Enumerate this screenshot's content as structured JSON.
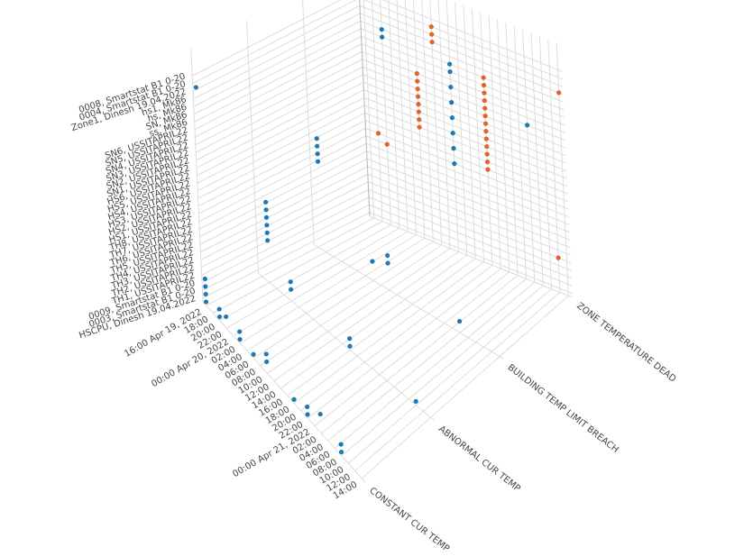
{
  "chart_data": {
    "type": "scatter3d",
    "xlim": [
      "2022-04-19T15:00",
      "2022-04-21T15:00"
    ],
    "xticks": [
      {
        "value": "2022-04-19T16:00",
        "label": "16:00 Apr 19, 2022"
      },
      {
        "value": "2022-04-19T18:00",
        "label": "18:00"
      },
      {
        "value": "2022-04-19T20:00",
        "label": "20:00"
      },
      {
        "value": "2022-04-19T22:00",
        "label": "22:00"
      },
      {
        "value": "2022-04-20T00:00",
        "label": "00:00 Apr 20, 2022"
      },
      {
        "value": "2022-04-20T02:00",
        "label": "02:00"
      },
      {
        "value": "2022-04-20T04:00",
        "label": "04:00"
      },
      {
        "value": "2022-04-20T06:00",
        "label": "06:00"
      },
      {
        "value": "2022-04-20T08:00",
        "label": "08:00"
      },
      {
        "value": "2022-04-20T10:00",
        "label": "10:00"
      },
      {
        "value": "2022-04-20T12:00",
        "label": "12:00"
      },
      {
        "value": "2022-04-20T14:00",
        "label": "14:00"
      },
      {
        "value": "2022-04-20T16:00",
        "label": "16:00"
      },
      {
        "value": "2022-04-20T18:00",
        "label": "18:00"
      },
      {
        "value": "2022-04-20T20:00",
        "label": "20:00"
      },
      {
        "value": "2022-04-20T22:00",
        "label": "22:00"
      },
      {
        "value": "2022-04-21T00:00",
        "label": "00:00 Apr 21, 2022"
      },
      {
        "value": "2022-04-21T02:00",
        "label": "02:00"
      },
      {
        "value": "2022-04-21T04:00",
        "label": "04:00"
      },
      {
        "value": "2022-04-21T06:00",
        "label": "06:00"
      },
      {
        "value": "2022-04-21T08:00",
        "label": "08:00"
      },
      {
        "value": "2022-04-21T10:00",
        "label": "10:00"
      },
      {
        "value": "2022-04-21T12:00",
        "label": "12:00"
      },
      {
        "value": "2022-04-21T14:00",
        "label": "14:00"
      }
    ],
    "y_categories": [
      "HSCPU, Dinesh 19.04.2022",
      "0003, Smartstat B1 0-20",
      "0009, Smartstat B1 0-20",
      "TH1, USSITAPRIL22",
      "TH2, USSITAPRIL22",
      "TH3, USSITAPRIL22",
      "TH4, USSITAPRIL22",
      "TH5, USSITAPRIL22",
      "TH6, USSITAPRIL22",
      "TH7, USSITAPRIL22",
      "TH8, USSITAPRIL22",
      "HS1, USSITAPRIL22",
      "HS2, USSITAPRIL22",
      "HS3, USSITAPRIL22",
      "HS4, USSITAPRIL22",
      "HS5, USSITAPRIL22",
      "HS6, USSITAPRIL22",
      "SN1, USSITAPRIL22",
      "SN2, USSITAPRIL22",
      "SN3, USSITAPRIL22",
      "SN4, USSITAPRIL22",
      "SN5, USSITAPRIL22",
      "SN6, USSITAPRIL22",
      "ss, Mk86",
      "SN, Mk86",
      "hs, Mk86",
      "hs1, Mk86",
      "Zone1, Dinesh 19.04.2022",
      "0004, Smartstat B1 0-20",
      "0008, Smartstat B1 0-20"
    ],
    "z_categories": [
      "CONSTANT CUR TEMP",
      "ABNORMAL CUR TEMP",
      "BUILDING TEMP LIMIT BREACH",
      "ZONE TEMPERATURE DEAD"
    ],
    "series": [
      {
        "color": "#1f77b4",
        "x": [
          "2022-04-20T12:00",
          "2022-04-20T12:00",
          "2022-04-20T12:00",
          "2022-04-20T12:00",
          "2022-04-20T12:00",
          "2022-04-20T12:00",
          "2022-04-20T12:00",
          "2022-04-20T12:00",
          "2022-04-19T20:00",
          "2022-04-19T20:00",
          "2022-04-21T06:00",
          "2022-04-19T17:00",
          "2022-04-19T17:00",
          "2022-04-19T17:00",
          "2022-04-19T17:00",
          "2022-04-20T10:00",
          "2022-04-20T10:00",
          "2022-04-20T06:00",
          "2022-04-21T04:00",
          "2022-04-19T18:00",
          "2022-04-19T18:00",
          "2022-04-19T18:00",
          "2022-04-19T18:00",
          "2022-04-19T18:00",
          "2022-04-19T18:00",
          "2022-04-20T00:00",
          "2022-04-20T00:00",
          "2022-04-20T16:00",
          "2022-04-20T16:00",
          "2022-04-21T10:00",
          "2022-04-19T16:00",
          "2022-04-19T16:00",
          "2022-04-19T16:00",
          "2022-04-19T16:00",
          "2022-04-19T20:00",
          "2022-04-19T20:00",
          "2022-04-19T22:00",
          "2022-04-20T02:00",
          "2022-04-20T02:00",
          "2022-04-20T06:00",
          "2022-04-20T10:00",
          "2022-04-20T10:00",
          "2022-04-20T18:00",
          "2022-04-20T22:00",
          "2022-04-20T22:00",
          "2022-04-21T02:00",
          "2022-04-21T08:00",
          "2022-04-21T08:00",
          "2022-04-19T16:00"
        ],
        "y": [
          "HS1, USSITAPRIL22",
          "HS3, USSITAPRIL22",
          "HS5, USSITAPRIL22",
          "SN1, USSITAPRIL22",
          "SN3, USSITAPRIL22",
          "SN5, USSITAPRIL22",
          "ss, Mk86",
          "SN, Mk86",
          "SN, Mk86",
          "hs, Mk86",
          "SN4, USSITAPRIL22",
          "HS1, USSITAPRIL22",
          "HS2, USSITAPRIL22",
          "HS3, USSITAPRIL22",
          "HS4, USSITAPRIL22",
          "TH1, USSITAPRIL22",
          "TH2, USSITAPRIL22",
          "0009, Smartstat B1 0-20",
          "0003, Smartstat B1 0-20",
          "TH3, USSITAPRIL22",
          "TH4, USSITAPRIL22",
          "TH5, USSITAPRIL22",
          "TH6, USSITAPRIL22",
          "TH7, USSITAPRIL22",
          "TH8, USSITAPRIL22",
          "0003, Smartstat B1 0-20",
          "0009, Smartstat B1 0-20",
          "HSCPU, Dinesh 19.04.2022",
          "0003, Smartstat B1 0-20",
          "HSCPU, Dinesh 19.04.2022",
          "HSCPU, Dinesh 19.04.2022",
          "0003, Smartstat B1 0-20",
          "0009, Smartstat B1 0-20",
          "TH1, USSITAPRIL22",
          "HSCPU, Dinesh 19.04.2022",
          "0003, Smartstat B1 0-20",
          "0003, Smartstat B1 0-20",
          "HSCPU, Dinesh 19.04.2022",
          "0003, Smartstat B1 0-20",
          "HSCPU, Dinesh 19.04.2022",
          "0003, Smartstat B1 0-20",
          "0009, Smartstat B1 0-20",
          "HSCPU, Dinesh 19.04.2022",
          "HSCPU, Dinesh 19.04.2022",
          "0003, Smartstat B1 0-20",
          "0009, Smartstat B1 0-20",
          "HSCPU, Dinesh 19.04.2022",
          "0003, Smartstat B1 0-20",
          "0004, Smartstat B1 0-20"
        ],
        "z": [
          "ZONE TEMPERATURE DEAD",
          "ZONE TEMPERATURE DEAD",
          "ZONE TEMPERATURE DEAD",
          "ZONE TEMPERATURE DEAD",
          "ZONE TEMPERATURE DEAD",
          "ZONE TEMPERATURE DEAD",
          "ZONE TEMPERATURE DEAD",
          "ZONE TEMPERATURE DEAD",
          "ZONE TEMPERATURE DEAD",
          "ZONE TEMPERATURE DEAD",
          "ZONE TEMPERATURE DEAD",
          "BUILDING TEMP LIMIT BREACH",
          "BUILDING TEMP LIMIT BREACH",
          "BUILDING TEMP LIMIT BREACH",
          "BUILDING TEMP LIMIT BREACH",
          "BUILDING TEMP LIMIT BREACH",
          "BUILDING TEMP LIMIT BREACH",
          "BUILDING TEMP LIMIT BREACH",
          "BUILDING TEMP LIMIT BREACH",
          "ABNORMAL CUR TEMP",
          "ABNORMAL CUR TEMP",
          "ABNORMAL CUR TEMP",
          "ABNORMAL CUR TEMP",
          "ABNORMAL CUR TEMP",
          "ABNORMAL CUR TEMP",
          "ABNORMAL CUR TEMP",
          "ABNORMAL CUR TEMP",
          "ABNORMAL CUR TEMP",
          "ABNORMAL CUR TEMP",
          "ABNORMAL CUR TEMP",
          "CONSTANT CUR TEMP",
          "CONSTANT CUR TEMP",
          "CONSTANT CUR TEMP",
          "CONSTANT CUR TEMP",
          "CONSTANT CUR TEMP",
          "CONSTANT CUR TEMP",
          "CONSTANT CUR TEMP",
          "CONSTANT CUR TEMP",
          "CONSTANT CUR TEMP",
          "CONSTANT CUR TEMP",
          "CONSTANT CUR TEMP",
          "CONSTANT CUR TEMP",
          "CONSTANT CUR TEMP",
          "CONSTANT CUR TEMP",
          "CONSTANT CUR TEMP",
          "CONSTANT CUR TEMP",
          "CONSTANT CUR TEMP",
          "CONSTANT CUR TEMP",
          "CONSTANT CUR TEMP"
        ]
      },
      {
        "color": "#e4622c",
        "x": [
          "2022-04-20T04:00",
          "2022-04-20T04:00",
          "2022-04-20T04:00",
          "2022-04-20T04:00",
          "2022-04-20T04:00",
          "2022-04-20T04:00",
          "2022-04-20T04:00",
          "2022-04-20T04:00",
          "2022-04-20T20:00",
          "2022-04-20T20:00",
          "2022-04-20T20:00",
          "2022-04-20T20:00",
          "2022-04-20T20:00",
          "2022-04-20T20:00",
          "2022-04-20T20:00",
          "2022-04-20T20:00",
          "2022-04-20T20:00",
          "2022-04-20T20:00",
          "2022-04-20T20:00",
          "2022-04-20T20:00",
          "2022-04-20T20:00",
          "2022-04-20T08:00",
          "2022-04-20T08:00",
          "2022-04-20T08:00",
          "2022-04-19T18:00",
          "2022-04-19T20:00",
          "2022-04-21T12:00",
          "2022-04-21T14:00"
        ],
        "y": [
          "HS4, USSITAPRIL22",
          "HS5, USSITAPRIL22",
          "HS6, USSITAPRIL22",
          "SN1, USSITAPRIL22",
          "SN2, USSITAPRIL22",
          "SN3, USSITAPRIL22",
          "SN4, USSITAPRIL22",
          "SN5, USSITAPRIL22",
          "HS2, USSITAPRIL22",
          "HS3, USSITAPRIL22",
          "HS4, USSITAPRIL22",
          "HS5, USSITAPRIL22",
          "HS6, USSITAPRIL22",
          "SN1, USSITAPRIL22",
          "SN2, USSITAPRIL22",
          "SN3, USSITAPRIL22",
          "SN4, USSITAPRIL22",
          "SN5, USSITAPRIL22",
          "SN6, USSITAPRIL22",
          "ss, Mk86",
          "SN, Mk86",
          "hs1, Mk86",
          "Zone1, Dinesh 19.04.2022",
          "0004, Smartstat B1 0-20",
          "HS1, USSITAPRIL22",
          "TH8, USSITAPRIL22",
          "TH2, USSITAPRIL22",
          "hs1, Mk86"
        ],
        "z": [
          "ZONE TEMPERATURE DEAD",
          "ZONE TEMPERATURE DEAD",
          "ZONE TEMPERATURE DEAD",
          "ZONE TEMPERATURE DEAD",
          "ZONE TEMPERATURE DEAD",
          "ZONE TEMPERATURE DEAD",
          "ZONE TEMPERATURE DEAD",
          "ZONE TEMPERATURE DEAD",
          "ZONE TEMPERATURE DEAD",
          "ZONE TEMPERATURE DEAD",
          "ZONE TEMPERATURE DEAD",
          "ZONE TEMPERATURE DEAD",
          "ZONE TEMPERATURE DEAD",
          "ZONE TEMPERATURE DEAD",
          "ZONE TEMPERATURE DEAD",
          "ZONE TEMPERATURE DEAD",
          "ZONE TEMPERATURE DEAD",
          "ZONE TEMPERATURE DEAD",
          "ZONE TEMPERATURE DEAD",
          "ZONE TEMPERATURE DEAD",
          "ZONE TEMPERATURE DEAD",
          "ZONE TEMPERATURE DEAD",
          "ZONE TEMPERATURE DEAD",
          "ZONE TEMPERATURE DEAD",
          "ZONE TEMPERATURE DEAD",
          "ZONE TEMPERATURE DEAD",
          "ZONE TEMPERATURE DEAD",
          "ZONE TEMPERATURE DEAD"
        ]
      }
    ]
  }
}
